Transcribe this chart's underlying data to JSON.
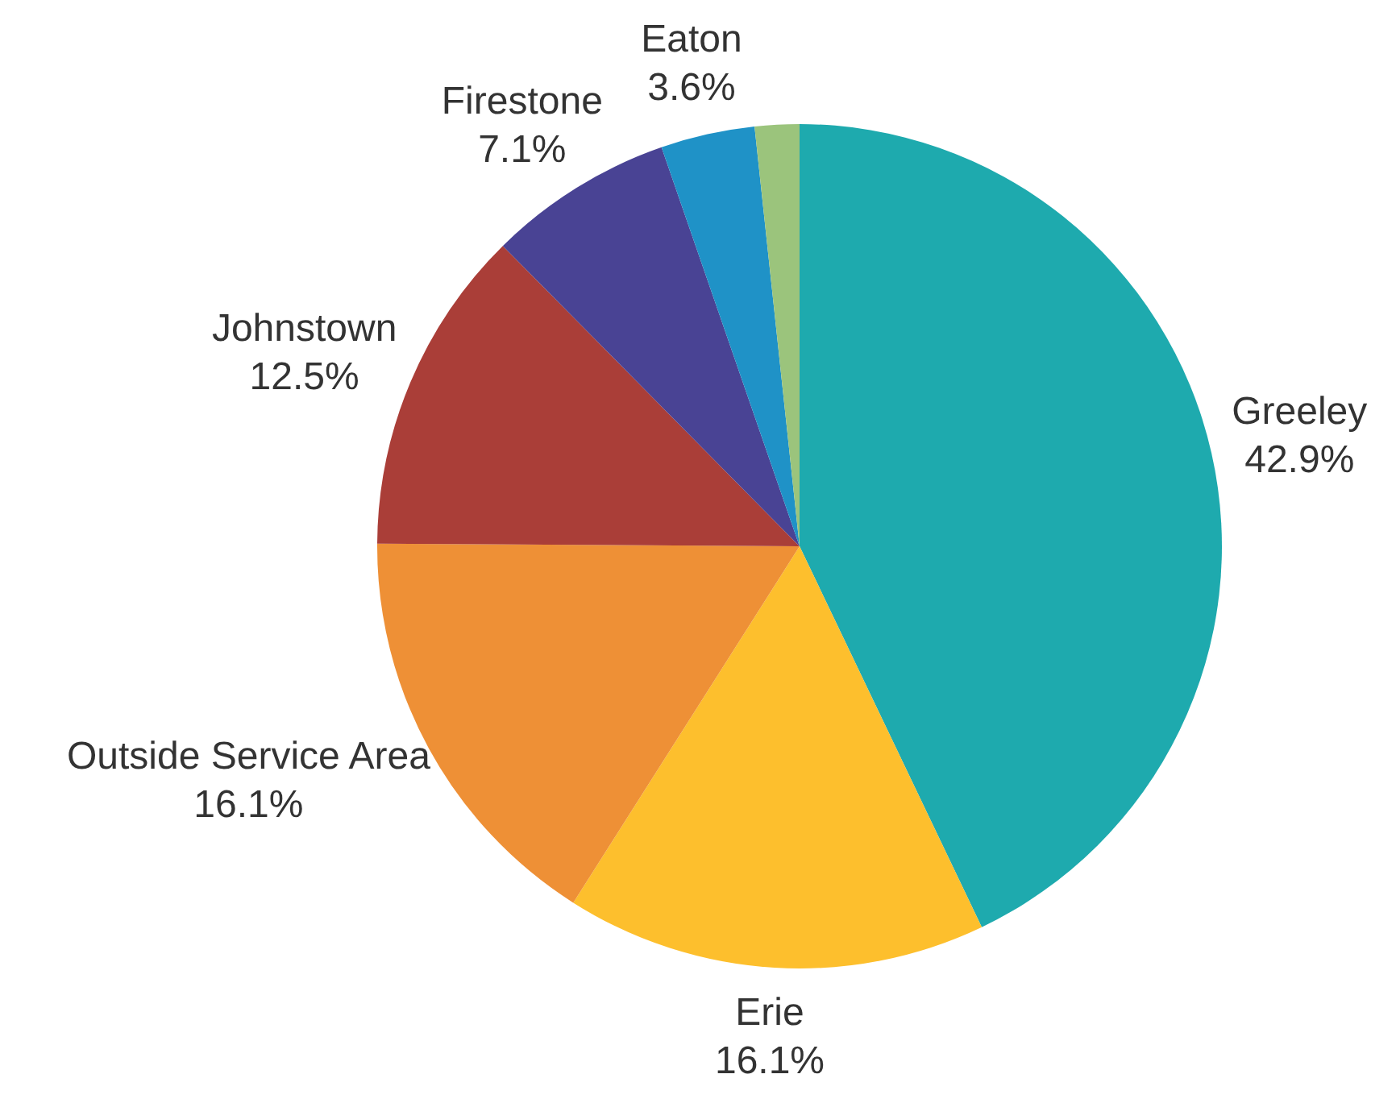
{
  "chart_data": {
    "type": "pie",
    "categories": [
      "Greeley",
      "Erie",
      "Outside Service Area",
      "Johnstown",
      "Firestone",
      "Eaton",
      null
    ],
    "values": [
      42.9,
      16.1,
      16.1,
      12.5,
      7.1,
      3.6,
      1.7
    ],
    "value_labels": [
      "42.9%",
      "16.1%",
      "16.1%",
      "12.5%",
      "7.1%",
      "3.6%",
      null
    ],
    "colors": [
      "#1eaaae",
      "#fdbf2d",
      "#ee9036",
      "#aa3e38",
      "#494394",
      "#1f92c7",
      "#9bc47c"
    ],
    "legend": false
  }
}
